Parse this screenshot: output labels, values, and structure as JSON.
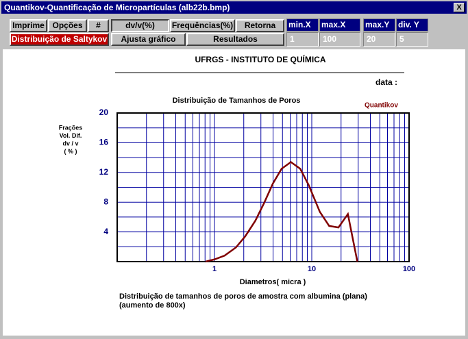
{
  "window": {
    "title": "Quantikov-Quantificação de Micropartículas  (alb22b.bmp)",
    "close": "X",
    "buttons": [
      "Imprime",
      "Opções",
      "#",
      "dv/v(%)",
      "Frequências(%)",
      "Retorna",
      "Distribuição de Saltykov",
      "Ajusta gráfico",
      "Resultados"
    ],
    "fields": [
      {
        "label": "min.X",
        "value": "1"
      },
      {
        "label": "max.X",
        "value": "100"
      },
      {
        "label": "max.Y",
        "value": "20"
      },
      {
        "label": "div. Y",
        "value": "5"
      }
    ],
    "header": "UFRGS - INSTITUTO DE QUÍMICA",
    "date_label": "data :",
    "caption": [
      "Distribuição de tamanhos de poros de amostra com albumina (plana)",
      "(aumento de 800x)"
    ]
  },
  "chart_data": {
    "type": "line",
    "title": "Distribuição de Tamanhos de Poros",
    "brand": "Quantikov",
    "ylabel": [
      "Frações",
      "Vol.  Dif.",
      "dv / v",
      "( % )"
    ],
    "xlabel": "Diametros( micra )",
    "x": [
      0.81,
      1,
      1.27,
      1.66,
      2.07,
      2.63,
      3.24,
      3.98,
      4.9,
      6.1,
      7.6,
      9.3,
      12.1,
      15.1,
      18.8,
      23.5,
      29.4
    ],
    "values": [
      0,
      0.3,
      0.8,
      1.9,
      3.4,
      5.5,
      7.9,
      10.5,
      12.5,
      13.4,
      12.5,
      10.3,
      6.7,
      4.8,
      4.6,
      6.4,
      0
    ],
    "color": "#800000",
    "xscale": "log",
    "xlim": [
      0.1,
      100
    ],
    "xticks": [
      1,
      10,
      100
    ],
    "x_minor_grid": [
      0.2,
      0.3,
      0.4,
      0.5,
      0.6,
      0.7,
      0.8,
      0.9,
      2,
      3,
      4,
      5,
      6,
      7,
      8,
      9,
      20,
      30,
      40,
      50,
      60,
      70,
      80,
      90
    ],
    "ylim": [
      0,
      20
    ],
    "yticks": [
      4,
      8,
      12,
      16,
      20
    ],
    "y_minor_grid": [
      2,
      6,
      10,
      14,
      18
    ],
    "grid": true,
    "grid_color": "#0000a0"
  }
}
